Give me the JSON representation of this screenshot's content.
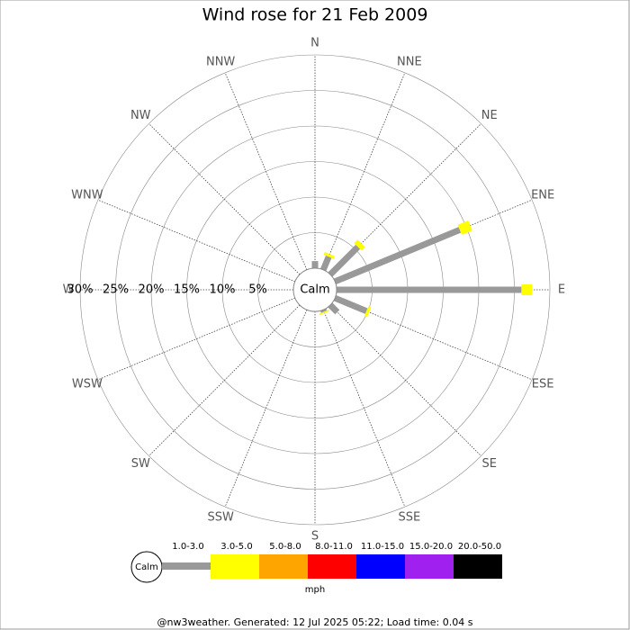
{
  "chart_data": {
    "type": "windrose",
    "title": "Wind rose for 21 Feb 2009",
    "center_label": "Calm",
    "categories": [
      "N",
      "NNE",
      "NE",
      "ENE",
      "E",
      "ESE",
      "SE",
      "SSE",
      "S",
      "SSW",
      "SW",
      "WSW",
      "W",
      "WNW",
      "NW",
      "NNW"
    ],
    "ylim": [
      0,
      30
    ],
    "yticks": [
      {
        "value": 5,
        "label": "5%"
      },
      {
        "value": 10,
        "label": "10%"
      },
      {
        "value": 15,
        "label": "15%"
      },
      {
        "value": 20,
        "label": "20%"
      },
      {
        "value": 25,
        "label": "25%"
      },
      {
        "value": 30,
        "label": "30%"
      }
    ],
    "series": [
      {
        "name": "1.0-3.0",
        "color": "#999999",
        "values": [
          1,
          2,
          5.5,
          19,
          26,
          4.8,
          1.4,
          0.3,
          0,
          0,
          0,
          0,
          0,
          0,
          0,
          0
        ]
      },
      {
        "name": "3.0-5.0",
        "color": "#ffff00",
        "values": [
          0,
          0.4,
          0.7,
          1.6,
          1.5,
          0.4,
          0,
          0.2,
          0,
          0,
          0,
          0,
          0,
          0,
          0,
          0
        ]
      },
      {
        "name": "5.0-8.0",
        "color": "#ffa500",
        "values": [
          0,
          0,
          0,
          0,
          0,
          0,
          0,
          0,
          0,
          0,
          0,
          0,
          0,
          0,
          0,
          0
        ]
      },
      {
        "name": "8.0-11.0",
        "color": "#ff0000",
        "values": [
          0,
          0,
          0,
          0,
          0,
          0,
          0,
          0,
          0,
          0,
          0,
          0,
          0,
          0,
          0,
          0
        ]
      },
      {
        "name": "11.0-15.0",
        "color": "#0000ff",
        "values": [
          0,
          0,
          0,
          0,
          0,
          0,
          0,
          0,
          0,
          0,
          0,
          0,
          0,
          0,
          0,
          0
        ]
      },
      {
        "name": "15.0-20.0",
        "color": "#a020f0",
        "values": [
          0,
          0,
          0,
          0,
          0,
          0,
          0,
          0,
          0,
          0,
          0,
          0,
          0,
          0,
          0,
          0
        ]
      },
      {
        "name": "20.0-50.0",
        "color": "#000000",
        "values": [
          0,
          0,
          0,
          0,
          0,
          0,
          0,
          0,
          0,
          0,
          0,
          0,
          0,
          0,
          0,
          0
        ]
      }
    ],
    "units": "mph",
    "footer": "@nw3weather. Generated: 12 Jul 2025 05:22; Load time: 0.04 s"
  }
}
